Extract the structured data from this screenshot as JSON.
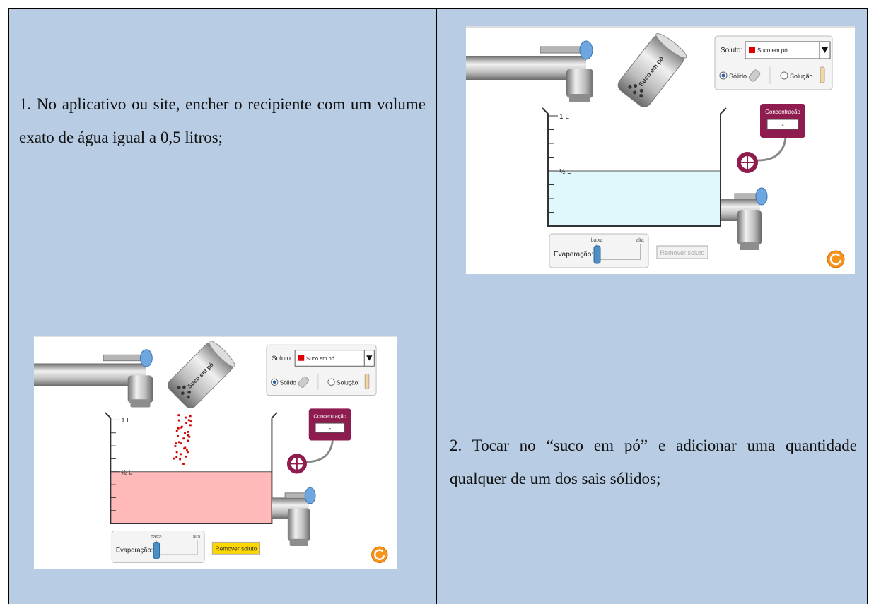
{
  "steps": [
    {
      "text": "1. No aplicativo ou site, encher o recipiente com um volume exato de água igual a 0,5 litros;"
    },
    {
      "text": "2. Tocar no “suco em pó” e adicionar uma quantidade qualquer de um dos sais sólidos;"
    }
  ],
  "simulations": [
    {
      "solute_label": "Soluto:",
      "solute": "Suco em pó",
      "solid": "Sólido",
      "solution": "Solução",
      "volume_max": "1 L",
      "volume_half": "½ L",
      "concentration_label": "Concentração",
      "concentration_value": "-",
      "evaporation_label": "Evaporação:",
      "evaporation_low": "baixa",
      "evaporation_high": "alta",
      "remove_button": "Remover soluto",
      "shaker_label": "Suco em pó",
      "liquid_color": "#e0f8fb",
      "button_color": "#f2f2f2",
      "button_text_color": "#aaaaaa"
    },
    {
      "solute_label": "Soluto:",
      "solute": "Suco em pó",
      "solid": "Sólido",
      "solution": "Solução",
      "volume_max": "1 L",
      "volume_half": "½ L",
      "concentration_label": "Concentração",
      "concentration_value": "-",
      "evaporation_label": "Evaporação:",
      "evaporation_low": "baixa",
      "evaporation_high": "alta",
      "remove_button": "Remover soluto",
      "shaker_label": "Suco em pó",
      "liquid_color": "#ffb9b9",
      "button_color": "#ffd700",
      "button_text_color": "#333333"
    }
  ]
}
